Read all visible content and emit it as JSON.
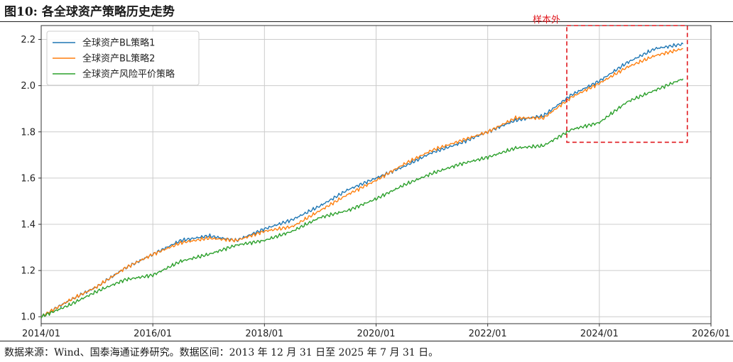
{
  "figure": {
    "title": "图10:  各全球资产策略历史走势",
    "source": "数据来源：Wind、国泰海通证券研究。数据区间：2013 年 12 月 31 日至 2025 年 7 月 31 日。"
  },
  "chart_data": {
    "type": "line",
    "title": "",
    "xlabel": "",
    "ylabel": "",
    "xlim": [
      "2014/01",
      "2026/01"
    ],
    "ylim": [
      0.97,
      2.26
    ],
    "grid": true,
    "legend_position": "top-left",
    "x_ticks": [
      "2014/01",
      "2016/01",
      "2018/01",
      "2020/01",
      "2022/01",
      "2024/01",
      "2026/01"
    ],
    "y_ticks": [
      1.0,
      1.2,
      1.4,
      1.6,
      1.8,
      2.0,
      2.2
    ],
    "y_tick_labels": [
      "1.0",
      "1.2",
      "1.4",
      "1.6",
      "1.8",
      "2.0",
      "2.2"
    ],
    "x": [
      "2014/01",
      "2014/07",
      "2015/01",
      "2015/07",
      "2016/01",
      "2016/07",
      "2017/01",
      "2017/07",
      "2018/01",
      "2018/07",
      "2019/01",
      "2019/07",
      "2020/01",
      "2020/07",
      "2021/01",
      "2021/07",
      "2022/01",
      "2022/07",
      "2023/01",
      "2023/07",
      "2024/01",
      "2024/07",
      "2025/01",
      "2025/07"
    ],
    "series": [
      {
        "name": "全球资产BL策略1",
        "color": "#1f77b4",
        "values": [
          1.0,
          1.07,
          1.13,
          1.21,
          1.27,
          1.33,
          1.35,
          1.33,
          1.38,
          1.42,
          1.48,
          1.55,
          1.6,
          1.65,
          1.71,
          1.75,
          1.8,
          1.85,
          1.87,
          1.96,
          2.02,
          2.1,
          2.16,
          2.18
        ]
      },
      {
        "name": "全球资产BL策略2",
        "color": "#ff7f0e",
        "values": [
          1.0,
          1.07,
          1.13,
          1.21,
          1.27,
          1.32,
          1.34,
          1.33,
          1.37,
          1.39,
          1.46,
          1.53,
          1.59,
          1.66,
          1.72,
          1.76,
          1.8,
          1.86,
          1.86,
          1.95,
          2.01,
          2.08,
          2.13,
          2.16
        ]
      },
      {
        "name": "全球资产风险平价策略",
        "color": "#2ca02c",
        "values": [
          1.0,
          1.05,
          1.11,
          1.16,
          1.18,
          1.24,
          1.27,
          1.31,
          1.33,
          1.37,
          1.43,
          1.46,
          1.51,
          1.57,
          1.62,
          1.66,
          1.69,
          1.73,
          1.74,
          1.81,
          1.84,
          1.93,
          1.98,
          2.03
        ]
      }
    ],
    "annotation": {
      "text": "样本外",
      "color": "#e0181e",
      "x_start": "2023/06",
      "x_end": "2025/07",
      "y_start": 1.755,
      "y_end": 2.26
    }
  }
}
